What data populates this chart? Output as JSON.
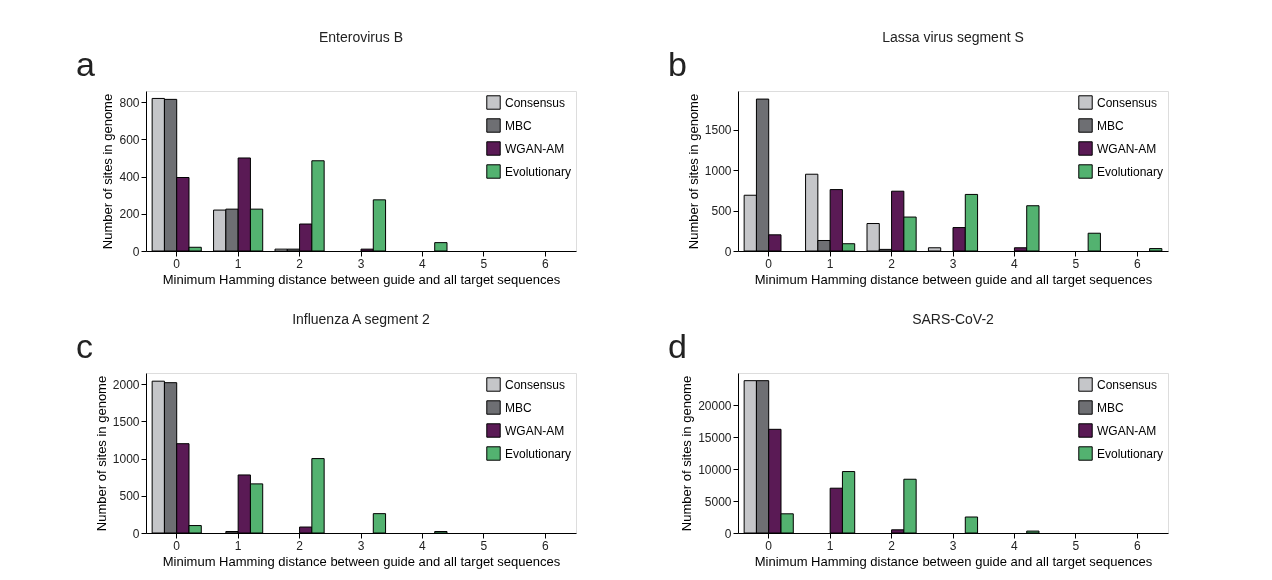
{
  "chart_data": [
    {
      "type": "bar",
      "title": "Enterovirus B",
      "annotations": [
        "a"
      ],
      "xlabel": "Minimum Hamming distance between guide and all target sequences",
      "ylabel": "Number of sites in genome",
      "categories": [
        "0",
        "1",
        "2",
        "3",
        "4",
        "5",
        "6"
      ],
      "ylim": [
        0,
        860
      ],
      "yticks": [
        0,
        200,
        400,
        600,
        800
      ],
      "legend": "top right",
      "grid": false,
      "series": [
        {
          "name": "Consensus",
          "color": "#c5c6c9",
          "values": [
            820,
            220,
            10,
            null,
            null,
            null,
            null
          ]
        },
        {
          "name": "MBC",
          "color": "#6e6f73",
          "values": [
            815,
            225,
            10,
            null,
            null,
            null,
            null
          ]
        },
        {
          "name": "WGAN-AM",
          "color": "#5a1a55",
          "values": [
            395,
            500,
            145,
            10,
            null,
            null,
            null
          ]
        },
        {
          "name": "Evolutionary",
          "color": "#53b270",
          "values": [
            20,
            225,
            485,
            275,
            45,
            null,
            null
          ]
        }
      ]
    },
    {
      "type": "bar",
      "title": "Lassa virus segment S",
      "annotations": [
        "b"
      ],
      "xlabel": "Minimum Hamming distance between guide and all target sequences",
      "ylabel": "Number of sites in genome",
      "categories": [
        "0",
        "1",
        "2",
        "3",
        "4",
        "5",
        "6"
      ],
      "ylim": [
        0,
        1980
      ],
      "yticks": [
        0,
        500,
        1000,
        1500
      ],
      "legend": "top right",
      "grid": false,
      "series": [
        {
          "name": "Consensus",
          "color": "#c5c6c9",
          "values": [
            690,
            950,
            340,
            40,
            null,
            null,
            null
          ]
        },
        {
          "name": "MBC",
          "color": "#6e6f73",
          "values": [
            1880,
            130,
            20,
            null,
            null,
            null,
            null
          ]
        },
        {
          "name": "WGAN-AM",
          "color": "#5a1a55",
          "values": [
            200,
            760,
            740,
            290,
            40,
            null,
            null
          ]
        },
        {
          "name": "Evolutionary",
          "color": "#53b270",
          "values": [
            null,
            90,
            420,
            700,
            560,
            220,
            30
          ]
        }
      ]
    },
    {
      "type": "bar",
      "title": "Influenza A segment 2",
      "annotations": [
        "c"
      ],
      "xlabel": "Minimum Hamming distance between guide and all target sequences",
      "ylabel": "Number of sites in genome",
      "categories": [
        "0",
        "1",
        "2",
        "3",
        "4",
        "5",
        "6"
      ],
      "ylim": [
        0,
        2150
      ],
      "yticks": [
        0,
        500,
        1000,
        1500,
        2000
      ],
      "legend": "top right",
      "grid": false,
      "series": [
        {
          "name": "Consensus",
          "color": "#c5c6c9",
          "values": [
            2040,
            null,
            null,
            null,
            null,
            null,
            null
          ]
        },
        {
          "name": "MBC",
          "color": "#6e6f73",
          "values": [
            2020,
            20,
            null,
            null,
            null,
            null,
            null
          ]
        },
        {
          "name": "WGAN-AM",
          "color": "#5a1a55",
          "values": [
            1200,
            780,
            80,
            null,
            null,
            null,
            null
          ]
        },
        {
          "name": "Evolutionary",
          "color": "#53b270",
          "values": [
            100,
            660,
            1000,
            260,
            20,
            null,
            null
          ]
        }
      ]
    },
    {
      "type": "bar",
      "title": "SARS-CoV-2",
      "annotations": [
        "d"
      ],
      "xlabel": "Minimum Hamming distance between guide and all target sequences",
      "ylabel": "Number of sites in genome",
      "categories": [
        "0",
        "1",
        "2",
        "3",
        "4",
        "5",
        "6"
      ],
      "ylim": [
        0,
        25000
      ],
      "yticks": [
        0,
        5000,
        10000,
        15000,
        20000
      ],
      "legend": "top right",
      "grid": false,
      "series": [
        {
          "name": "Consensus",
          "color": "#c5c6c9",
          "values": [
            23800,
            null,
            null,
            null,
            null,
            null,
            null
          ]
        },
        {
          "name": "MBC",
          "color": "#6e6f73",
          "values": [
            23800,
            null,
            null,
            null,
            null,
            null,
            null
          ]
        },
        {
          "name": "WGAN-AM",
          "color": "#5a1a55",
          "values": [
            16200,
            7000,
            500,
            null,
            null,
            null,
            null
          ]
        },
        {
          "name": "Evolutionary",
          "color": "#53b270",
          "values": [
            3000,
            9600,
            8400,
            2500,
            300,
            null,
            null
          ]
        }
      ]
    }
  ]
}
